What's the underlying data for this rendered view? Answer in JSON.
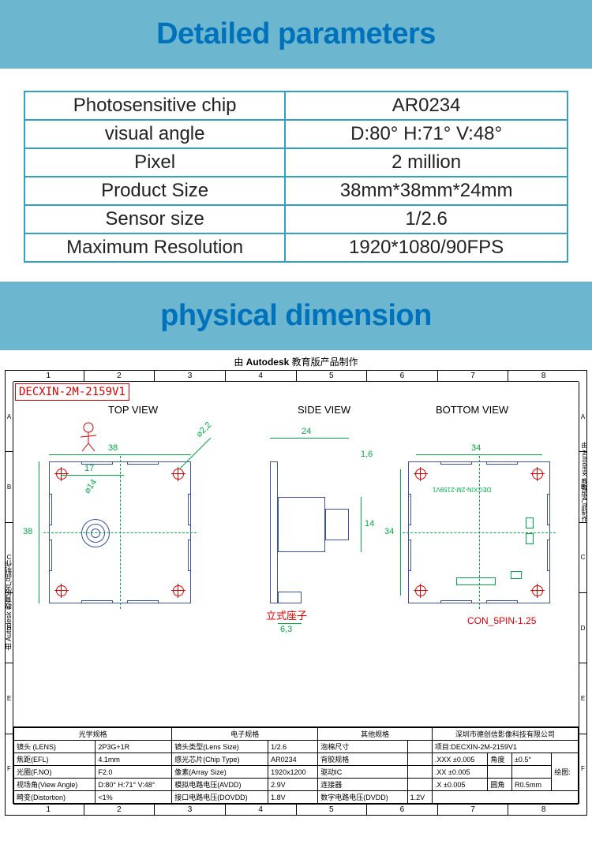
{
  "banner1": {
    "title": "Detailed parameters"
  },
  "specs": [
    {
      "label": "Photosensitive chip",
      "value": "AR0234"
    },
    {
      "label": "visual angle",
      "value": "D:80° H:71° V:48°"
    },
    {
      "label": "Pixel",
      "value": "2 million"
    },
    {
      "label": "Product Size",
      "value": "38mm*38mm*24mm"
    },
    {
      "label": "Sensor size",
      "value": "1/2.6"
    },
    {
      "label": "Maximum Resolution",
      "value": "1920*1080/90FPS"
    }
  ],
  "banner2": {
    "title": "physical dimension"
  },
  "drawing": {
    "autodesk_note_bold": "Autodesk",
    "autodesk_note_rest": " 教育版产品制作",
    "autodesk_note_prefix": "由 ",
    "part_number": "DECXIN-2M-2159V1",
    "views": {
      "top": "TOP VIEW",
      "side": "SIDE VIEW",
      "bottom": "BOTTOM VIEW"
    },
    "grid_cols": [
      "1",
      "2",
      "3",
      "4",
      "5",
      "6",
      "7",
      "8"
    ],
    "grid_rows_left": [
      "A",
      "B",
      "C",
      "D",
      "E",
      "F"
    ],
    "side_note_left": "由 Autodesk 教育版产品制作",
    "side_note_right": "由 Autodesk 教育版产品制作",
    "dims": {
      "top_width": "38",
      "top_inner_w": "17",
      "top_height": "38",
      "hole_d": "⌀2,2",
      "lens_d": "⌀14",
      "side_width": "24",
      "side_lens_h": "14",
      "side_base": "6,3",
      "side_thick": "1,6",
      "bottom_w": "34",
      "bottom_h": "34"
    },
    "labels": {
      "vertical_connector": "立式座子",
      "con_5pin": "CON_5PIN-1.25",
      "silk_model": "DECXIN-2M-2159V1"
    },
    "title_block": {
      "optical_header": "光学规格",
      "electronic_header": "电子规格",
      "other_header": "其他规格",
      "company": "深圳市德创信影像科技有限公司",
      "project_label": "项目:",
      "project_value": "DECXIN-2M-2159V1",
      "rows_optical": [
        [
          "镜头 (LENS)",
          "2P3G+1R"
        ],
        [
          "焦距(EFL)",
          "4.1mm"
        ],
        [
          "光圈(F.NO)",
          "F2.0"
        ],
        [
          "视场角(View Angle)",
          "D:80° H:71° V:48°"
        ],
        [
          "畸变(Distortion)",
          "<1%"
        ]
      ],
      "rows_electronic": [
        [
          "镜头类型(Lens Size)",
          "1/2.6"
        ],
        [
          "感光芯片(Chip Type)",
          "AR0234"
        ],
        [
          "像素(Array Size)",
          "1920x1200"
        ],
        [
          "模拟电路电压(AVDD)",
          "2.9V"
        ],
        [
          "接口电路电压(DOVDD)",
          "1.8V"
        ]
      ],
      "rows_other": [
        [
          "泡棉尺寸",
          ""
        ],
        [
          "背胶规格",
          ""
        ],
        [
          "驱动IC",
          ""
        ],
        [
          "连接器",
          ""
        ],
        [
          "数字电路电压(DVDD)",
          "1.2V"
        ]
      ],
      "tol_rows": [
        [
          ".XXX ±0.005",
          "角度",
          "±0.5°"
        ],
        [
          ".XX ±0.005",
          "",
          ""
        ],
        [
          ".X ±0.005",
          "圆角",
          "R0.5mm"
        ]
      ],
      "drawing_label": "绘图:"
    },
    "colors": {
      "banner_bg": "#6cb6cf",
      "heading_text": "#0072bc",
      "table_border": "#32a0c0",
      "drawing_blue": "#3a52a0",
      "drawing_green": "#0a4",
      "drawing_red": "#d00"
    }
  }
}
